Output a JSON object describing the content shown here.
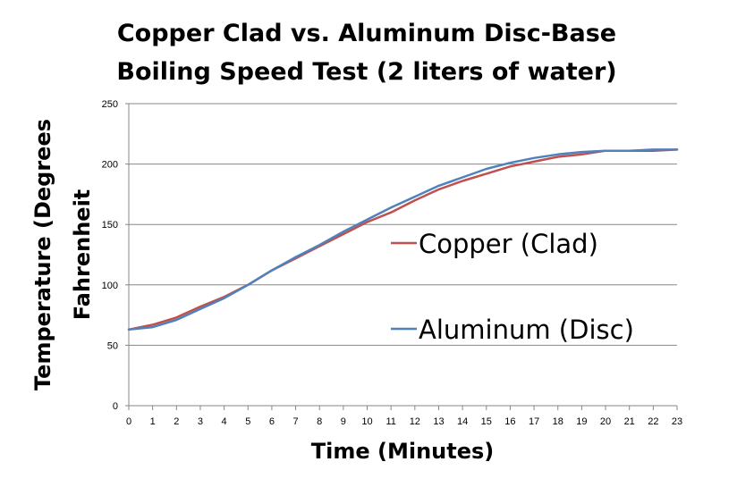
{
  "chart_data": {
    "type": "line",
    "title": [
      "Copper Clad vs. Aluminum Disc-Base",
      "Boiling Speed Test (2 liters of water)"
    ],
    "xlabel": "Time (Minutes)",
    "ylabel": [
      "Temperature (Degrees",
      "Fahrenheit"
    ],
    "x": [
      0,
      1,
      2,
      3,
      4,
      5,
      6,
      7,
      8,
      9,
      10,
      11,
      12,
      13,
      14,
      15,
      16,
      17,
      18,
      19,
      20,
      21,
      22,
      23
    ],
    "xlim": [
      0,
      23
    ],
    "ylim": [
      0,
      250
    ],
    "yticks": [
      0,
      50,
      100,
      150,
      200,
      250
    ],
    "grid": true,
    "legend": "right",
    "series": [
      {
        "name": "Copper (Clad)",
        "color": "#C0504D",
        "values": [
          63,
          67,
          73,
          82,
          90,
          100,
          112,
          122,
          132,
          142,
          152,
          160,
          170,
          179,
          186,
          192,
          198,
          202,
          206,
          208,
          211,
          211,
          211,
          212
        ]
      },
      {
        "name": "Aluminum (Disc)",
        "color": "#4F81BD",
        "values": [
          63,
          65,
          71,
          80,
          89,
          100,
          112,
          123,
          133,
          144,
          154,
          164,
          173,
          182,
          189,
          196,
          201,
          205,
          208,
          210,
          211,
          211,
          212,
          212
        ]
      }
    ]
  }
}
